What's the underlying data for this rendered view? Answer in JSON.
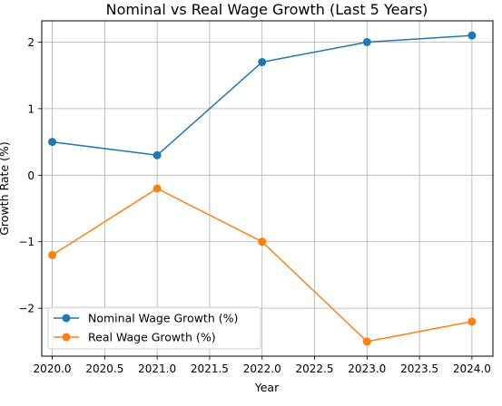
{
  "chart_data": {
    "type": "line",
    "title": "Nominal vs Real Wage Growth (Last 5 Years)",
    "xlabel": "Year",
    "ylabel": "Growth Rate (%)",
    "x": [
      2020,
      2021,
      2022,
      2023,
      2024
    ],
    "xlim": [
      2019.9,
      2024.2
    ],
    "ylim": [
      -2.72,
      2.32
    ],
    "x_ticks": [
      2020.0,
      2020.5,
      2021.0,
      2021.5,
      2022.0,
      2022.5,
      2023.0,
      2023.5,
      2024.0
    ],
    "x_tick_labels": [
      "2020.0",
      "2020.5",
      "2021.0",
      "2021.5",
      "2022.0",
      "2022.5",
      "2023.0",
      "2023.5",
      "2024.0"
    ],
    "y_ticks": [
      -2,
      -1,
      0,
      1,
      2
    ],
    "y_tick_labels": [
      "−2",
      "−1",
      "0",
      "1",
      "2"
    ],
    "grid": true,
    "legend_position": "lower-left",
    "series": [
      {
        "name": "Nominal Wage Growth (%)",
        "color": "#1f77b4",
        "values": [
          0.5,
          0.3,
          1.7,
          2.0,
          2.1
        ]
      },
      {
        "name": "Real Wage Growth (%)",
        "color": "#ff7f0e",
        "values": [
          -1.2,
          -0.2,
          -1.0,
          -2.5,
          -2.2
        ]
      }
    ]
  }
}
